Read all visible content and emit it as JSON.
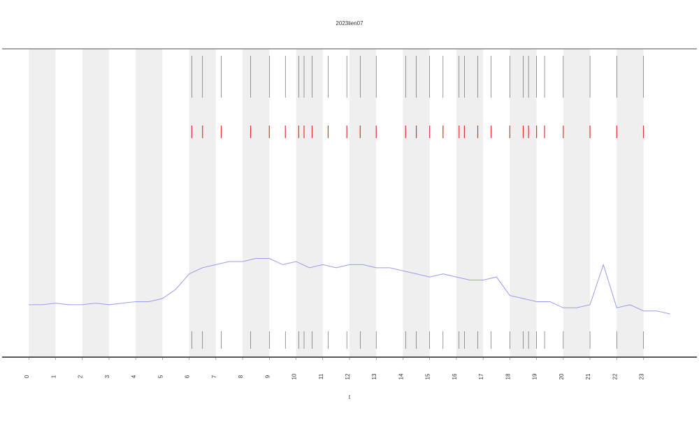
{
  "chart_data": {
    "type": "line",
    "title": "2023lien07",
    "x_label": "t",
    "x": [
      0,
      0.5,
      1,
      1.5,
      2,
      2.5,
      3,
      3.5,
      4,
      4.5,
      5,
      5.5,
      6,
      6.5,
      7,
      7.5,
      8,
      8.5,
      9,
      9.5,
      10,
      10.5,
      11,
      11.5,
      12,
      12.5,
      13,
      13.5,
      14,
      14.5,
      15,
      15.5,
      16,
      16.5,
      17,
      17.5,
      18,
      18.5,
      19,
      19.5,
      20,
      20.5,
      21,
      21.5,
      22,
      22.5,
      23,
      23.5,
      24
    ],
    "series": [
      {
        "color": "#9a9aee",
        "values": [
          17,
          17,
          17.5,
          17,
          17,
          17.5,
          17,
          17.5,
          18,
          18,
          19,
          22,
          27,
          29,
          30,
          31,
          31,
          32,
          32,
          30,
          31,
          29,
          30,
          29,
          30,
          30,
          29,
          29,
          28,
          27,
          26,
          27,
          26,
          25,
          25,
          26,
          20,
          19,
          18,
          18,
          16,
          16,
          17,
          30,
          16,
          17,
          15,
          15,
          14
        ]
      }
    ],
    "bands": [
      [
        0,
        1
      ],
      [
        2,
        3
      ],
      [
        4,
        5
      ],
      [
        6,
        7
      ],
      [
        8,
        9
      ],
      [
        10,
        11
      ],
      [
        12,
        13
      ],
      [
        14,
        15
      ],
      [
        16,
        17
      ],
      [
        18,
        19
      ],
      [
        20,
        21
      ],
      [
        22,
        23
      ]
    ],
    "band_color": "#efefef",
    "events": [
      6.1,
      6.5,
      7.2,
      8.3,
      9.0,
      9.6,
      10.1,
      10.3,
      10.6,
      11.2,
      11.9,
      12.4,
      13.0,
      14.1,
      14.5,
      15.0,
      15.5,
      16.1,
      16.3,
      16.8,
      17.3,
      18.0,
      18.5,
      18.7,
      19.0,
      19.3,
      20.0,
      21.0,
      22.0,
      23.0
    ],
    "event_color": "#e03030",
    "xlim": [
      -1,
      25
    ],
    "ylim": [
      0,
      100
    ],
    "xticks": [
      0,
      1,
      2,
      3,
      4,
      5,
      6,
      7,
      8,
      9,
      10,
      11,
      12,
      13,
      14,
      15,
      16,
      17,
      18,
      19,
      20,
      21,
      22,
      23
    ]
  }
}
